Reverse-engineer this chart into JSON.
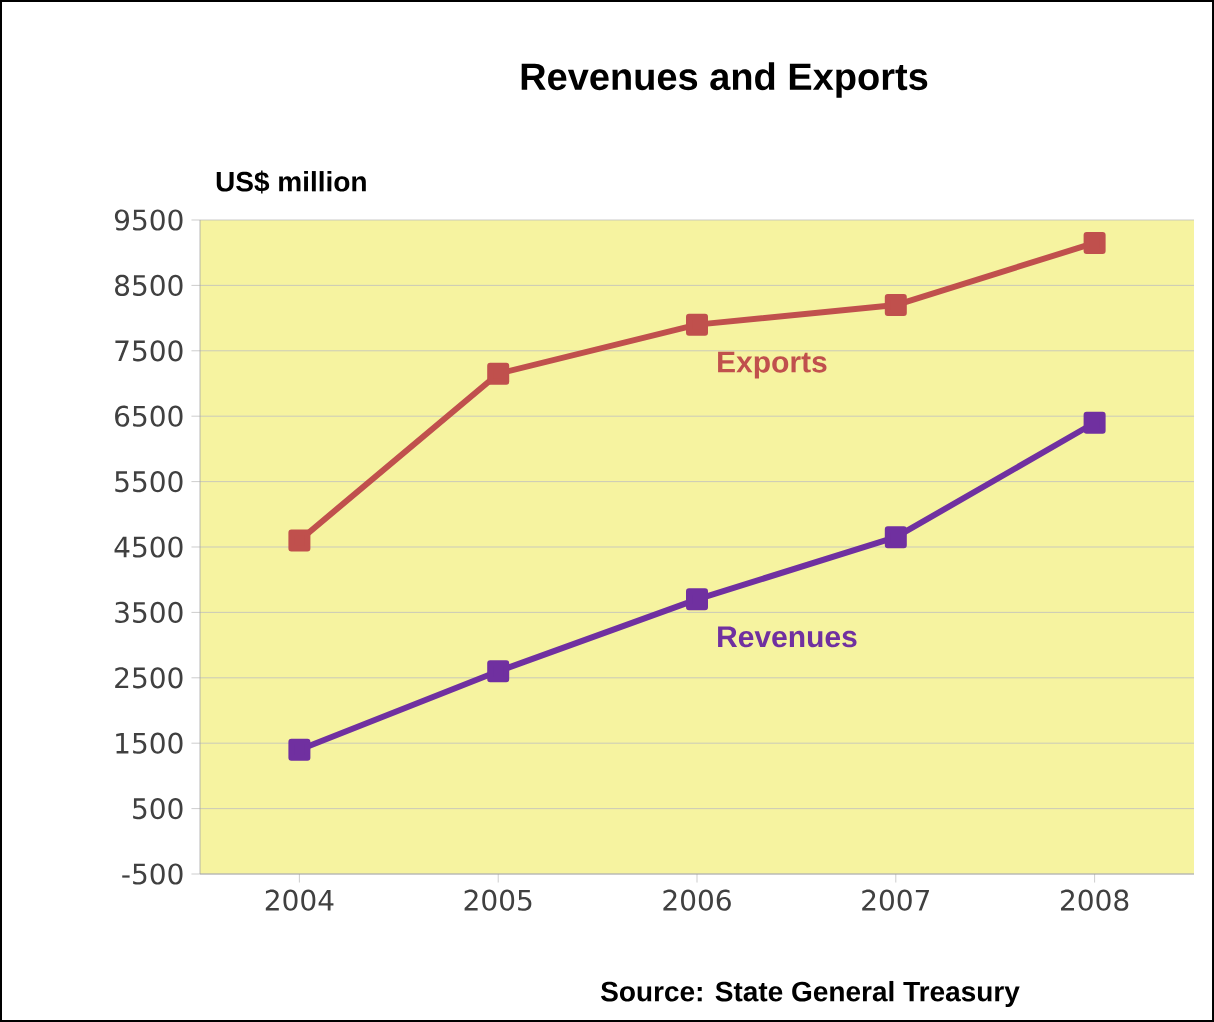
{
  "chart_data": {
    "type": "line",
    "title": "Revenues and Exports",
    "ylabel": "US$ million",
    "categories": [
      "2004",
      "2005",
      "2006",
      "2007",
      "2008"
    ],
    "series": [
      {
        "name": "Exports",
        "color": "#c0504d",
        "values": [
          4600,
          7150,
          7900,
          8200,
          9150
        ]
      },
      {
        "name": "Revenues",
        "color": "#7030a0",
        "values": [
          1400,
          2600,
          3700,
          4650,
          6400
        ]
      }
    ],
    "ylim": [
      -500,
      9500
    ],
    "yticks": [
      -500,
      500,
      1500,
      2500,
      3500,
      4500,
      5500,
      6500,
      7500,
      8500,
      9500
    ],
    "grid": "y",
    "legend": false,
    "marker": "square",
    "line_style": "solid",
    "annotations": [
      "Source: State General Treasury"
    ]
  }
}
